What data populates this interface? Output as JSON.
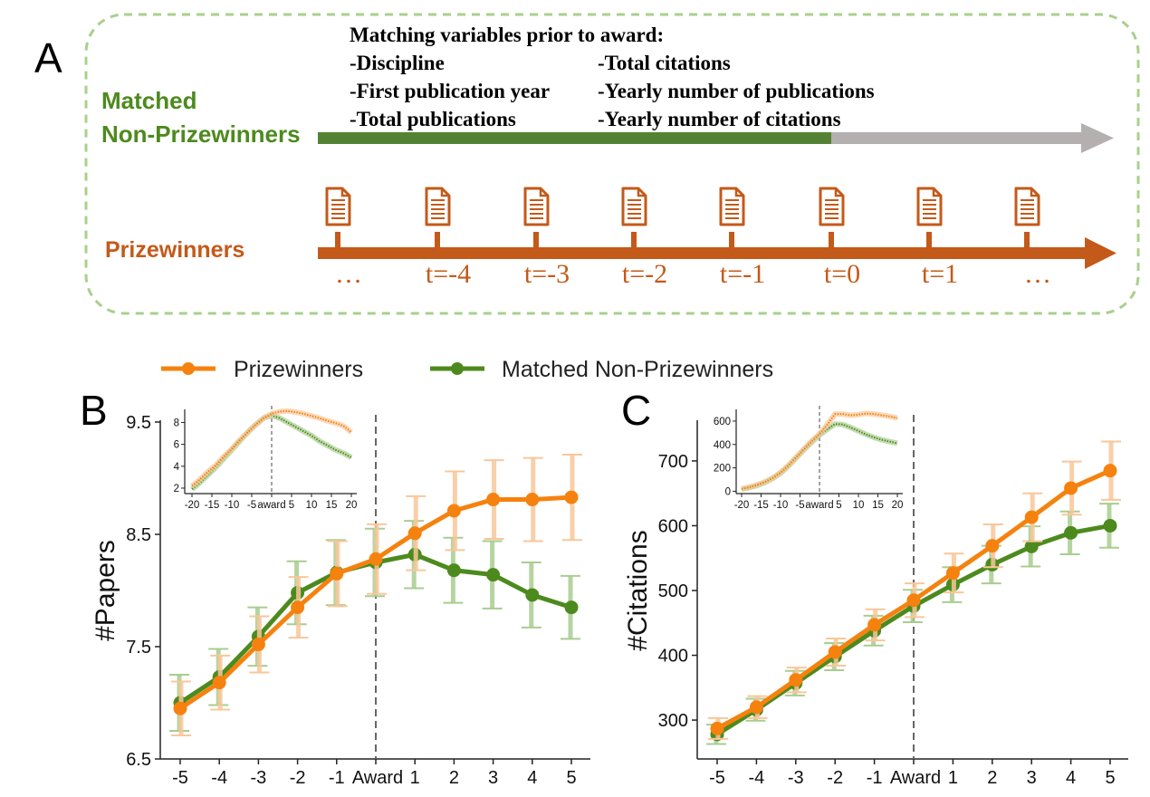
{
  "colors": {
    "orange": "#f5820f",
    "orange_light": "#f8c79a",
    "green": "#4d8a1e",
    "green_light": "#a9cd90",
    "timeline_orange": "#c35a1a",
    "grey_arrow": "#b5b0b0",
    "box_border": "#a8d08d",
    "doc_icon": "#c35a1a"
  },
  "panelA": {
    "letter": "A",
    "heading": "Matching variables prior to award:",
    "vars_left": [
      "-Discipline",
      "-First publication year",
      "-Total publications"
    ],
    "vars_right": [
      "-Total citations",
      "-Yearly number of publications",
      "-Yearly number of citations"
    ],
    "matched_label_1": "Matched",
    "matched_label_2": "Non-Prizewinners",
    "prizewinners_label": "Prizewinners",
    "ticks": [
      "…",
      "t=-4",
      "t=-3",
      "t=-2",
      "t=-1",
      "t=0",
      "t=1",
      "…"
    ],
    "doc_icon_name": "document-icon"
  },
  "legend": {
    "prizewinners": "Prizewinners",
    "matched": "Matched Non-Prizewinners"
  },
  "chart_data": [
    {
      "panel": "B",
      "type": "line",
      "ylabel": "#Papers",
      "categories": [
        "-5",
        "-4",
        "-3",
        "-2",
        "-1",
        "Award",
        "1",
        "2",
        "3",
        "4",
        "5"
      ],
      "x": [
        -5,
        -4,
        -3,
        -2,
        -1,
        0,
        1,
        2,
        3,
        4,
        5
      ],
      "ylim": [
        6.5,
        9.5
      ],
      "yticks": [
        6.5,
        7.5,
        8.5,
        9.5
      ],
      "series": [
        {
          "name": "Prizewinners",
          "values": [
            6.95,
            7.18,
            7.52,
            7.85,
            8.15,
            8.28,
            8.51,
            8.71,
            8.81,
            8.81,
            8.83
          ],
          "err": [
            0.24,
            0.24,
            0.25,
            0.27,
            0.29,
            0.31,
            0.33,
            0.35,
            0.35,
            0.37,
            0.38
          ]
        },
        {
          "name": "Matched Non-Prizewinners",
          "values": [
            7.0,
            7.23,
            7.59,
            7.98,
            8.16,
            8.25,
            8.32,
            8.18,
            8.14,
            7.96,
            7.85
          ],
          "err": [
            0.25,
            0.25,
            0.26,
            0.28,
            0.29,
            0.3,
            0.3,
            0.29,
            0.3,
            0.29,
            0.28
          ]
        }
      ],
      "inset": {
        "xticks": [
          "-20",
          "-15",
          "-10",
          "-5",
          "award",
          "5",
          "10",
          "15",
          "20"
        ],
        "yticks": [
          "2",
          "4",
          "6",
          "8"
        ],
        "ylim": [
          1.5,
          9.2
        ],
        "x": [
          -20,
          -18,
          -16,
          -14,
          -12,
          -10,
          -8,
          -6,
          -4,
          -2,
          0,
          2,
          4,
          6,
          8,
          10,
          12,
          14,
          16,
          18,
          20
        ],
        "prizewinners": [
          2.2,
          2.8,
          3.5,
          4.1,
          4.9,
          5.6,
          6.4,
          7.1,
          7.8,
          8.4,
          8.8,
          9.0,
          9.05,
          8.95,
          8.8,
          8.6,
          8.4,
          8.15,
          7.95,
          7.7,
          7.1
        ],
        "matched": [
          1.9,
          2.5,
          3.2,
          3.9,
          4.7,
          5.5,
          6.3,
          7.1,
          7.8,
          8.4,
          8.65,
          8.4,
          8.0,
          7.6,
          7.2,
          6.8,
          6.3,
          5.9,
          5.5,
          5.2,
          4.8
        ]
      }
    },
    {
      "panel": "C",
      "type": "line",
      "ylabel": "#Citations",
      "categories": [
        "-5",
        "-4",
        "-3",
        "-2",
        "-1",
        "Award",
        "1",
        "2",
        "3",
        "4",
        "5"
      ],
      "x": [
        -5,
        -4,
        -3,
        -2,
        -1,
        0,
        1,
        2,
        3,
        4,
        5
      ],
      "ylim": [
        240,
        760
      ],
      "yticks": [
        300,
        400,
        500,
        600,
        700
      ],
      "series": [
        {
          "name": "Prizewinners",
          "values": [
            287,
            320,
            362,
            405,
            447,
            485,
            527,
            569,
            613,
            658,
            685
          ],
          "err": [
            16,
            17,
            19,
            21,
            24,
            26,
            30,
            33,
            37,
            41,
            45
          ]
        },
        {
          "name": "Matched Non-Prizewinners",
          "values": [
            278,
            316,
            357,
            398,
            438,
            476,
            509,
            540,
            568,
            589,
            600
          ],
          "err": [
            15,
            17,
            19,
            21,
            23,
            25,
            27,
            29,
            31,
            33,
            34
          ]
        }
      ],
      "inset": {
        "xticks": [
          "-20",
          "-15",
          "-10",
          "-5",
          "award",
          "5",
          "10",
          "15",
          "20"
        ],
        "yticks": [
          "0",
          "200",
          "400",
          "600"
        ],
        "ylim": [
          -20,
          700
        ],
        "x": [
          -20,
          -18,
          -16,
          -14,
          -12,
          -10,
          -8,
          -6,
          -4,
          -2,
          0,
          2,
          4,
          6,
          8,
          10,
          12,
          14,
          16,
          18,
          20
        ],
        "prizewinners": [
          20,
          35,
          55,
          80,
          115,
          160,
          220,
          290,
          360,
          430,
          490,
          570,
          660,
          660,
          650,
          655,
          665,
          660,
          650,
          640,
          625
        ],
        "matched": [
          18,
          32,
          50,
          75,
          110,
          155,
          215,
          285,
          355,
          420,
          480,
          530,
          575,
          570,
          545,
          515,
          485,
          460,
          440,
          425,
          410
        ]
      }
    }
  ]
}
